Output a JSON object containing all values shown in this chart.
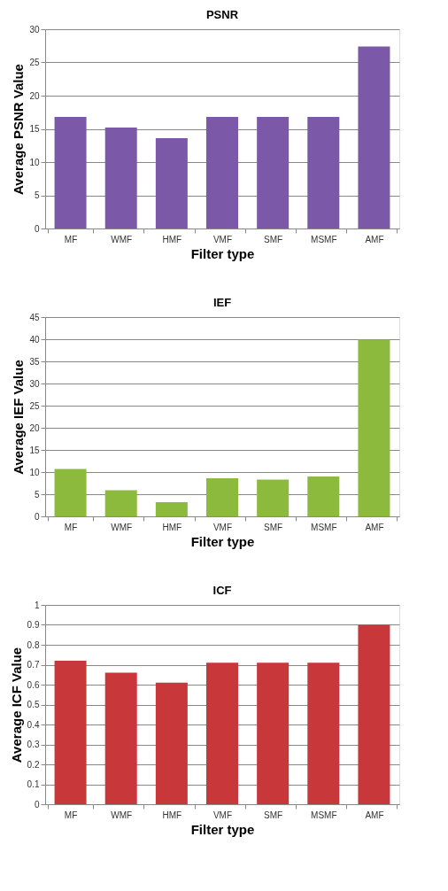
{
  "chart_data": [
    {
      "type": "bar",
      "title": "PSNR",
      "xlabel": "Filter type",
      "ylabel": "Average PSNR Value",
      "categories": [
        "MF",
        "WMF",
        "HMF",
        "VMF",
        "SMF",
        "MSMF",
        "AMF"
      ],
      "series": [
        {
          "color": "#7b59a8",
          "values": [
            16.8,
            15.2,
            13.6,
            16.8,
            16.8,
            16.8,
            27.4
          ]
        }
      ],
      "ylim": [
        0,
        30
      ],
      "yticks": [
        0,
        5,
        10,
        15,
        20,
        25,
        30
      ],
      "grid": "y",
      "legend": false
    },
    {
      "type": "bar",
      "title": "IEF",
      "xlabel": "Filter type",
      "ylabel": "Average IEF Value",
      "categories": [
        "MF",
        "WMF",
        "HMF",
        "VMF",
        "SMF",
        "MSMF",
        "AMF"
      ],
      "series": [
        {
          "color": "#8cba3c",
          "values": [
            10.7,
            5.9,
            3.2,
            8.6,
            8.3,
            9.0,
            39.9
          ]
        }
      ],
      "ylim": [
        0,
        45
      ],
      "yticks": [
        0,
        5,
        10,
        15,
        20,
        25,
        30,
        35,
        40,
        45
      ],
      "grid": "y",
      "legend": false
    },
    {
      "type": "bar",
      "title": "ICF",
      "xlabel": "Filter type",
      "ylabel": "Average ICF Value",
      "categories": [
        "MF",
        "WMF",
        "HMF",
        "VMF",
        "SMF",
        "MSMF",
        "AMF"
      ],
      "series": [
        {
          "color": "#c8373a",
          "values": [
            0.72,
            0.66,
            0.61,
            0.71,
            0.71,
            0.71,
            0.9
          ]
        }
      ],
      "ylim": [
        0,
        1
      ],
      "yticks": [
        0,
        0.1,
        0.2,
        0.3,
        0.4,
        0.5,
        0.6,
        0.7,
        0.8,
        0.9,
        1
      ],
      "grid": "y",
      "legend": false
    }
  ]
}
